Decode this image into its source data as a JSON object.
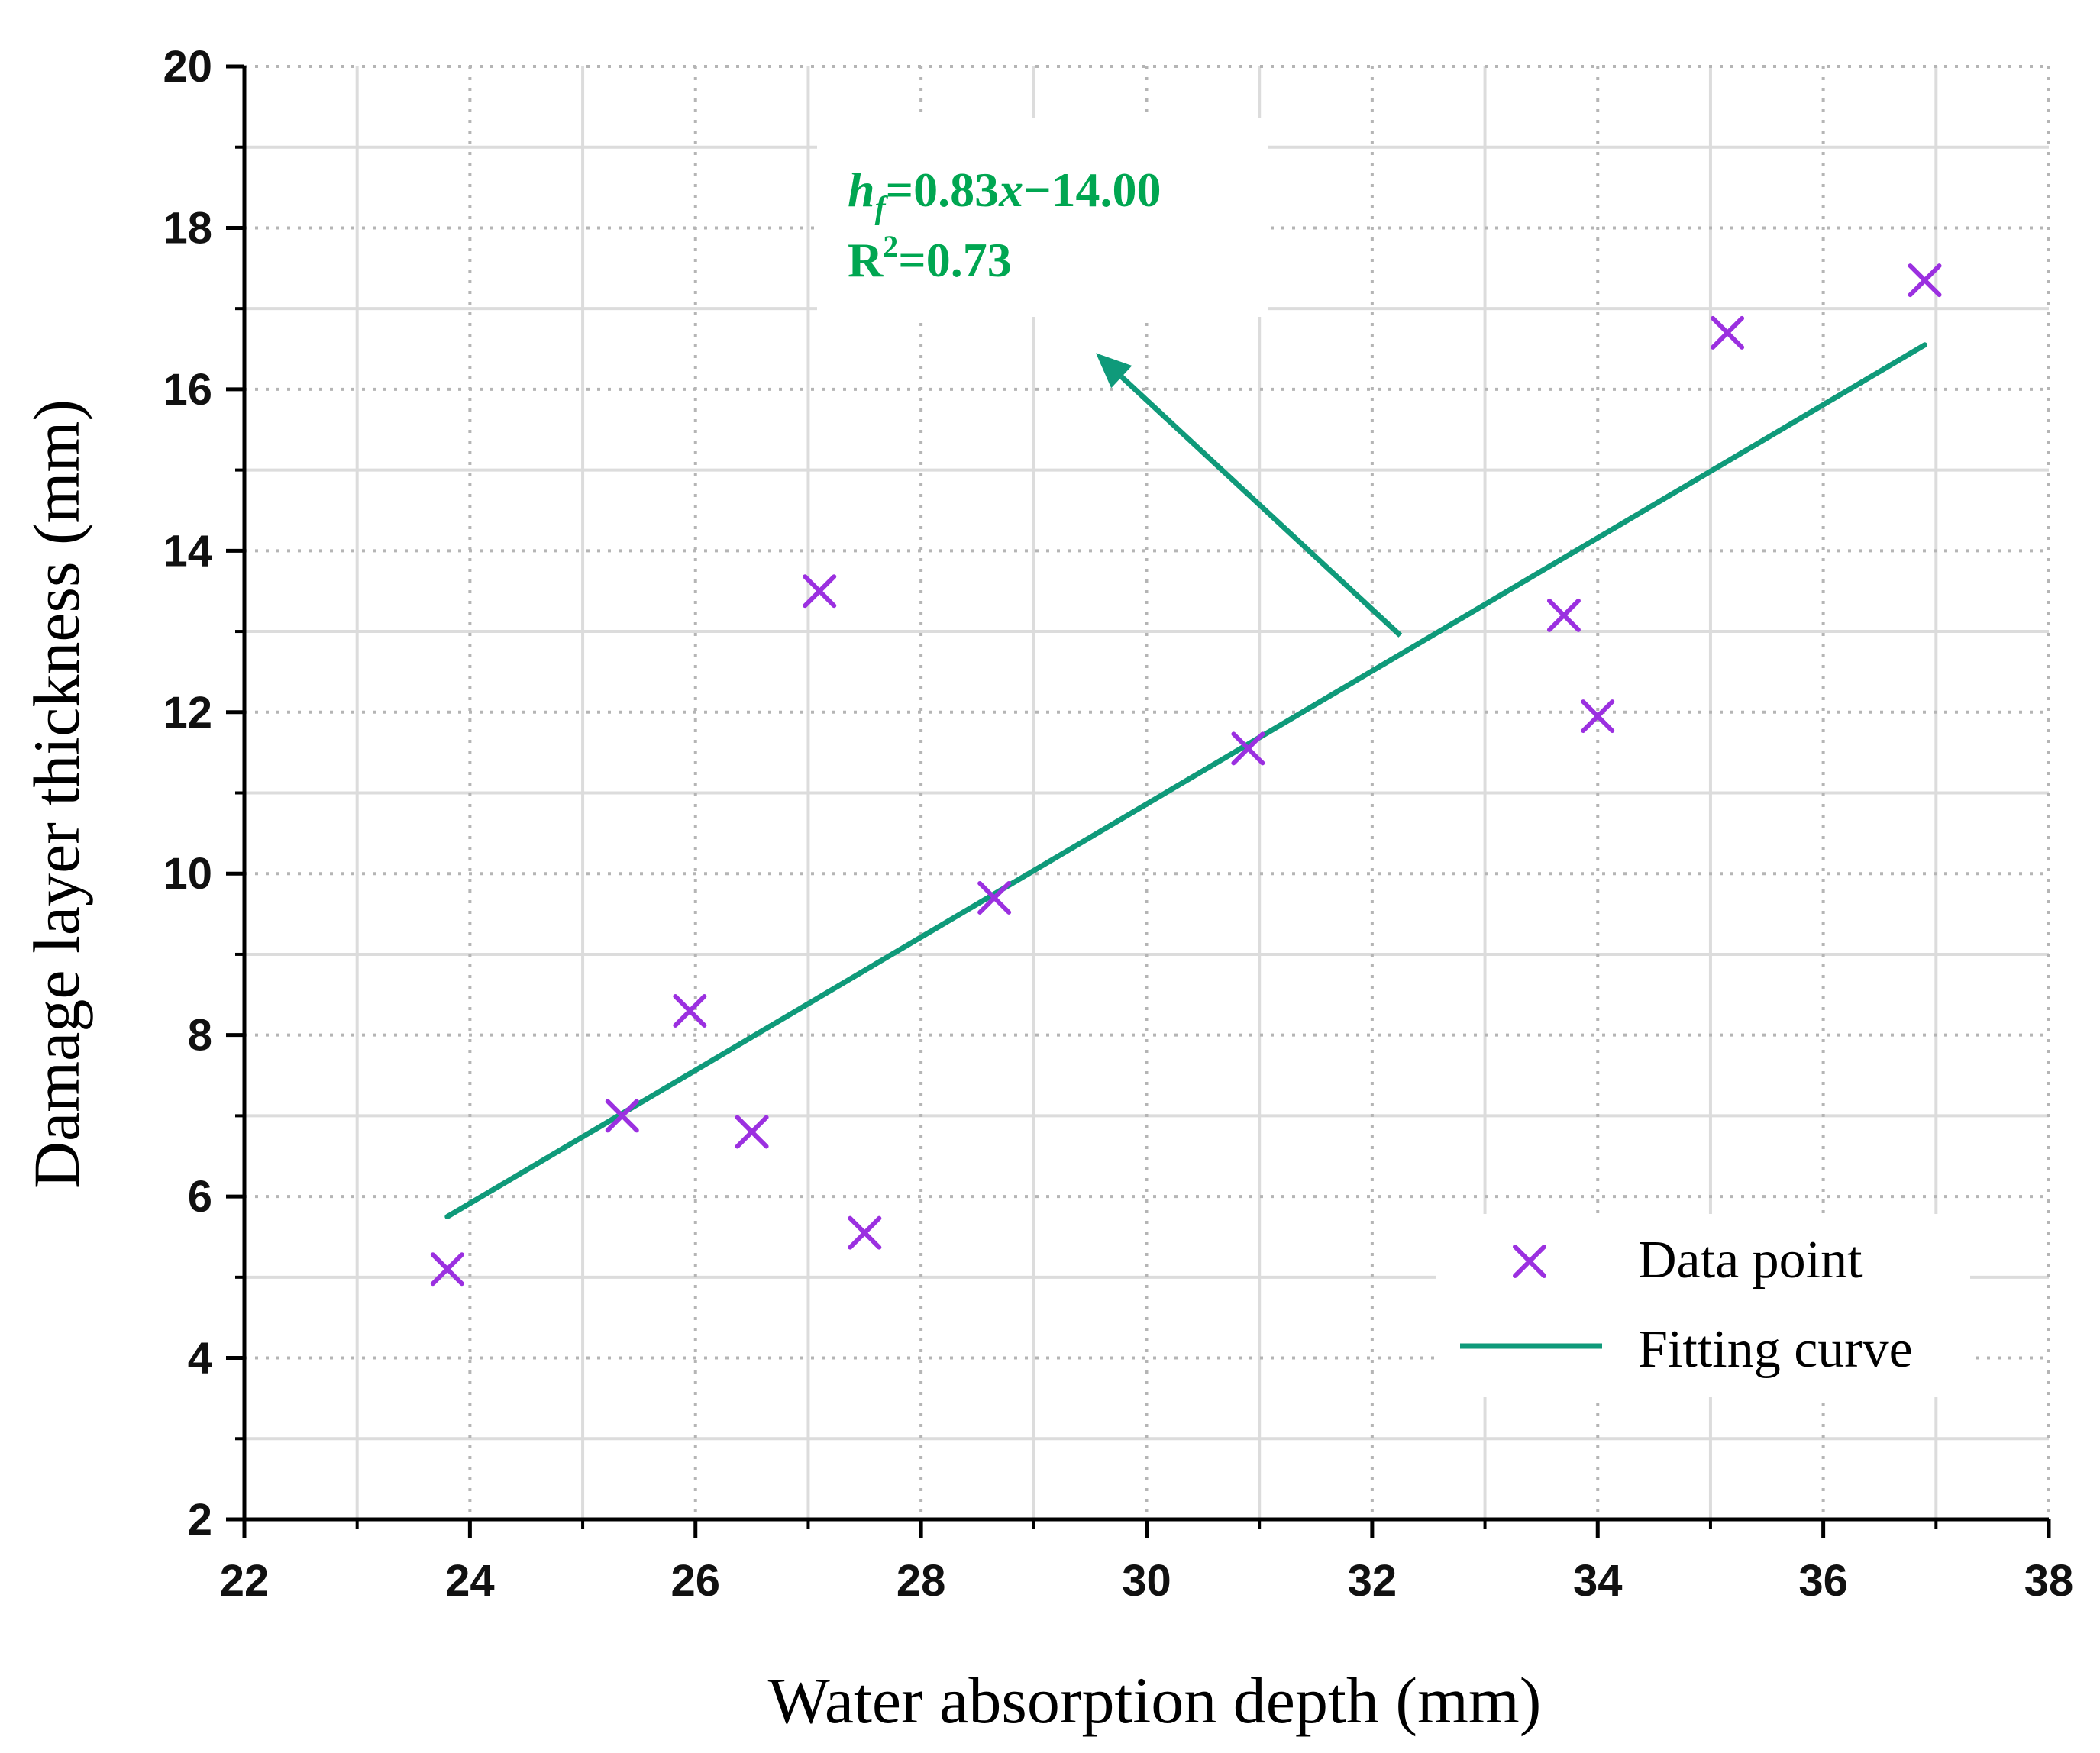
{
  "chart_data": {
    "type": "scatter",
    "xlabel": "Water absorption depth (mm)",
    "ylabel": "Damage layer thickness (mm)",
    "xlim": [
      22,
      38
    ],
    "ylim": [
      2,
      20
    ],
    "x_ticks": [
      22,
      24,
      26,
      28,
      30,
      32,
      34,
      36,
      38
    ],
    "y_ticks": [
      2,
      4,
      6,
      8,
      10,
      12,
      14,
      16,
      18,
      20
    ],
    "grid": true,
    "legend_position": "bottom-right",
    "series": [
      {
        "name": "Data point",
        "kind": "scatter",
        "marker": "x",
        "color": "#9b30e0",
        "points": [
          {
            "x": 23.8,
            "y": 5.1
          },
          {
            "x": 25.35,
            "y": 7.0
          },
          {
            "x": 25.95,
            "y": 8.3
          },
          {
            "x": 26.5,
            "y": 6.8
          },
          {
            "x": 27.1,
            "y": 13.5
          },
          {
            "x": 27.5,
            "y": 5.55
          },
          {
            "x": 28.65,
            "y": 9.7
          },
          {
            "x": 30.9,
            "y": 11.55
          },
          {
            "x": 33.7,
            "y": 13.2
          },
          {
            "x": 34.0,
            "y": 11.95
          },
          {
            "x": 35.15,
            "y": 16.7
          },
          {
            "x": 36.9,
            "y": 17.35
          }
        ]
      },
      {
        "name": "Fitting curve",
        "kind": "line",
        "color": "#0f9a7a",
        "points": [
          {
            "x": 23.8,
            "y": 5.75
          },
          {
            "x": 36.9,
            "y": 16.55
          }
        ]
      }
    ],
    "annotation": {
      "equation_var": "h",
      "equation_sub": "f",
      "equation_eq": "=0.83",
      "equation_x": "x",
      "equation_rest": "−14.00",
      "r2_base": "R",
      "r2_sup": "2",
      "r2_rest": "=0.73",
      "color": "#00a651",
      "arrow_from": {
        "x": 32.25,
        "y": 12.95
      },
      "arrow_to": {
        "x": 29.55,
        "y": 16.45
      }
    }
  }
}
